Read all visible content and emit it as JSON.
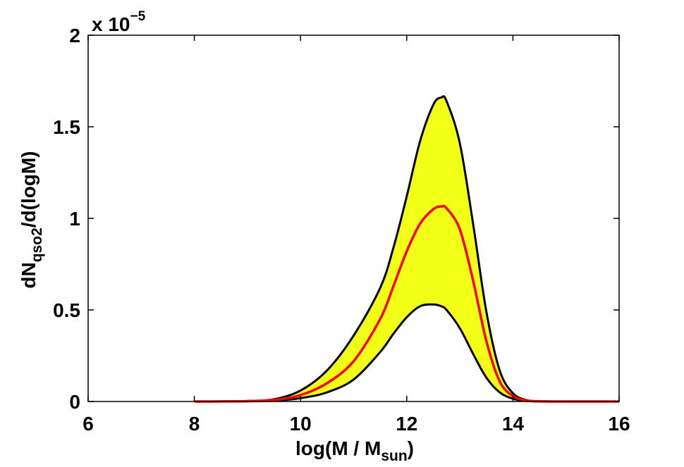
{
  "chart_data": {
    "type": "area",
    "xlabel": {
      "main": "log(M / M",
      "subscript": "sun",
      "close": ")"
    },
    "ylabel": {
      "main": "dN",
      "subscript": "qso2",
      "rest": "/d(logM)"
    },
    "y_multiplier": {
      "prefix": "x 10",
      "exponent": "−5"
    },
    "xlim": [
      6,
      16
    ],
    "ylim": [
      0,
      2
    ],
    "x_ticks": [
      6,
      8,
      10,
      12,
      14,
      16
    ],
    "y_ticks": [
      0,
      0.5,
      1,
      1.5,
      2
    ],
    "x_tick_labels": [
      "6",
      "8",
      "10",
      "12",
      "14",
      "16"
    ],
    "y_tick_labels": [
      "0",
      "0.5",
      "1",
      "1.5",
      "2"
    ],
    "grid": false,
    "colors": {
      "band_fill": "#f2ff16",
      "band_edge": "#000000",
      "median": "#ff0000"
    },
    "series": [
      {
        "role": "upper",
        "x": [
          8,
          8.5,
          9,
          9.5,
          10,
          10.5,
          11,
          11.5,
          11.75,
          12,
          12.25,
          12.5,
          12.65,
          12.75,
          13,
          13.25,
          13.5,
          13.75,
          14,
          14.25,
          14.5,
          15,
          16
        ],
        "y": [
          0,
          0.0005,
          0.003,
          0.012,
          0.06,
          0.17,
          0.36,
          0.62,
          0.84,
          1.12,
          1.42,
          1.62,
          1.66,
          1.64,
          1.41,
          0.97,
          0.49,
          0.17,
          0.045,
          0.008,
          0.001,
          0,
          0
        ]
      },
      {
        "role": "median",
        "x": [
          8,
          8.5,
          9,
          9.5,
          10,
          10.5,
          11,
          11.5,
          11.75,
          12,
          12.25,
          12.5,
          12.65,
          12.75,
          13,
          13.25,
          13.5,
          13.75,
          14,
          14.25,
          14.5,
          15,
          16
        ],
        "y": [
          0,
          0.0003,
          0.002,
          0.008,
          0.035,
          0.1,
          0.22,
          0.45,
          0.63,
          0.82,
          0.97,
          1.05,
          1.065,
          1.055,
          0.94,
          0.66,
          0.33,
          0.11,
          0.03,
          0.006,
          0.001,
          0,
          0
        ]
      },
      {
        "role": "lower",
        "x": [
          8,
          8.5,
          9,
          9.5,
          10,
          10.5,
          11,
          11.5,
          11.75,
          12,
          12.25,
          12.5,
          12.65,
          12.75,
          13,
          13.25,
          13.5,
          13.75,
          14,
          14.25,
          14.5,
          15,
          16
        ],
        "y": [
          0,
          0.0002,
          0.001,
          0.004,
          0.018,
          0.05,
          0.12,
          0.27,
          0.37,
          0.46,
          0.52,
          0.53,
          0.52,
          0.5,
          0.4,
          0.26,
          0.13,
          0.05,
          0.015,
          0.003,
          0.0005,
          0,
          0
        ]
      }
    ]
  }
}
